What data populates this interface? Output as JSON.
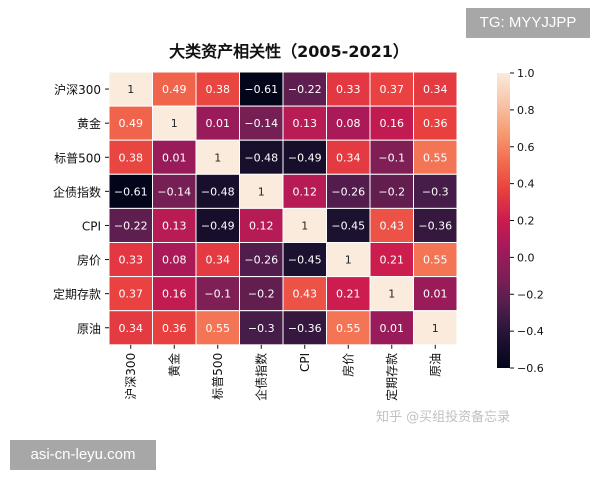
{
  "chart_data": {
    "type": "heatmap",
    "title": "大类资产相关性（2005-2021）",
    "rows": [
      "沪深300",
      "黄金",
      "标普500",
      "企债指数",
      "CPI",
      "房价",
      "定期存款",
      "原油"
    ],
    "columns": [
      "沪深300",
      "黄金",
      "标普500",
      "企债指数",
      "CPI",
      "房价",
      "定期存款",
      "原油"
    ],
    "values": [
      [
        1,
        0.49,
        0.38,
        -0.61,
        -0.22,
        0.33,
        0.37,
        0.34
      ],
      [
        0.49,
        1,
        0.01,
        -0.14,
        0.13,
        0.08,
        0.16,
        0.36
      ],
      [
        0.38,
        0.01,
        1,
        -0.48,
        -0.49,
        0.34,
        -0.1,
        0.55
      ],
      [
        -0.61,
        -0.14,
        -0.48,
        1,
        0.12,
        -0.26,
        -0.2,
        -0.3
      ],
      [
        -0.22,
        0.13,
        -0.49,
        0.12,
        1,
        -0.45,
        0.43,
        -0.36
      ],
      [
        0.33,
        0.08,
        0.34,
        -0.26,
        -0.45,
        1,
        0.21,
        0.55
      ],
      [
        0.37,
        0.16,
        -0.1,
        -0.2,
        0.43,
        0.21,
        1,
        0.01
      ],
      [
        0.34,
        0.36,
        0.55,
        -0.3,
        -0.36,
        0.55,
        0.01,
        1
      ]
    ],
    "colorbar": {
      "min": -0.6,
      "max": 1.0,
      "ticks": [
        1.0,
        0.8,
        0.6,
        0.4,
        0.2,
        0.0,
        -0.2,
        -0.4,
        -0.6
      ],
      "tick_labels": [
        "1.0",
        "0.8",
        "0.6",
        "0.4",
        "0.2",
        "0.0",
        "−0.2",
        "−0.4",
        "−0.6"
      ],
      "colormap": "rocket",
      "stops": [
        "#03051a",
        "#1f1232",
        "#4c1d4b",
        "#7b1f55",
        "#a11a5b",
        "#cb1b4f",
        "#e83f3f",
        "#f26c4f",
        "#f69c73",
        "#f7c5a9",
        "#faebdd"
      ]
    },
    "xlabel": "",
    "ylabel": "",
    "grid": false,
    "legend": "colorbar-right"
  },
  "badges": {
    "top_right": "TG: MYYJJPP",
    "bottom_left": "asi-cn-leyu.com"
  },
  "watermark": "知乎 @买组投资备忘录"
}
